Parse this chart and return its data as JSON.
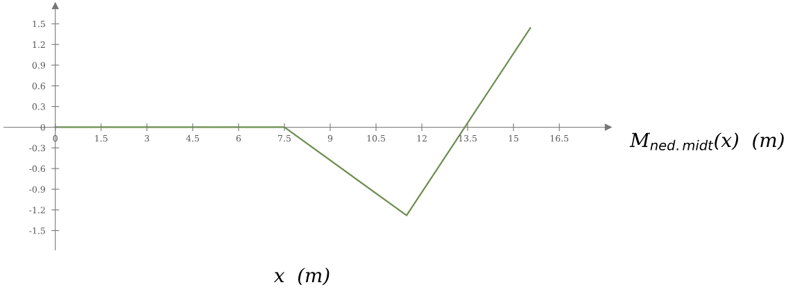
{
  "chart_data": {
    "type": "line",
    "xlabel": "x  (m)",
    "ylabel": "M$_{ned.midt}$(x)  (m)",
    "x": [
      0,
      7.5,
      11.5,
      15.55
    ],
    "series": [
      {
        "color": "#6b8e4e",
        "values": [
          0,
          0,
          -1.28,
          1.44
        ]
      }
    ],
    "xlim": [
      -1.68,
      18.1
    ],
    "xticks": [
      0,
      1.5,
      3,
      4.5,
      6,
      7.5,
      9,
      10.5,
      12,
      13.5,
      15,
      16.5
    ],
    "ylim": [
      -1.78,
      1.76
    ],
    "yticks": [
      -1.5,
      -1.2,
      -0.9,
      -0.6,
      -0.3,
      0,
      0.3,
      0.6,
      0.9,
      1.2,
      1.5
    ],
    "grid": false,
    "legend": false,
    "marker": "none",
    "line_style": "solid"
  }
}
